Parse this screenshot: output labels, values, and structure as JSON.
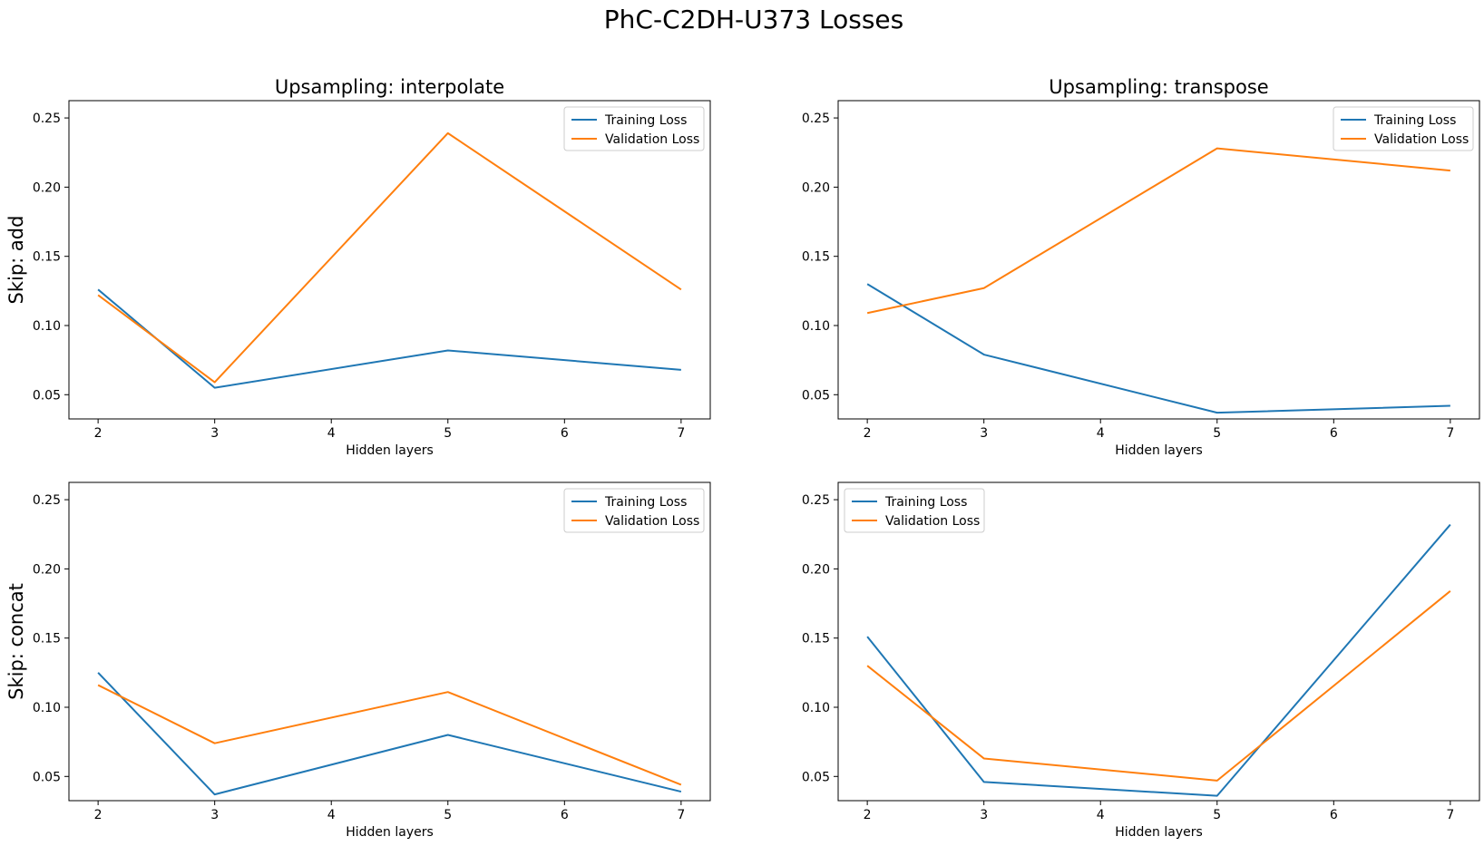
{
  "title": "PhC-C2DH-U373 Losses",
  "chart_data": [
    {
      "type": "line",
      "title": "Upsampling: interpolate",
      "row_label": "Skip: add",
      "xlabel": "Hidden layers",
      "ylabel": "Skip: add",
      "x": [
        2,
        3,
        5,
        7
      ],
      "xticks": [
        "2",
        "3",
        "4",
        "5",
        "6",
        "7"
      ],
      "yticks": [
        "0.05",
        "0.10",
        "0.15",
        "0.20",
        "0.25"
      ],
      "xlim": [
        1.75,
        7.25
      ],
      "ylim": [
        0.0325,
        0.2625
      ],
      "grid": false,
      "legend": "upper right",
      "series": [
        {
          "name": "Training Loss",
          "color": "#1f77b4",
          "values": [
            0.126,
            0.055,
            0.082,
            0.068
          ]
        },
        {
          "name": "Validation Loss",
          "color": "#ff7f0e",
          "values": [
            0.122,
            0.059,
            0.239,
            0.126
          ]
        }
      ]
    },
    {
      "type": "line",
      "title": "Upsampling: transpose",
      "xlabel": "Hidden layers",
      "ylabel": "",
      "x": [
        2,
        3,
        5,
        7
      ],
      "xticks": [
        "2",
        "3",
        "4",
        "5",
        "6",
        "7"
      ],
      "yticks": [
        "0.05",
        "0.10",
        "0.15",
        "0.20",
        "0.25"
      ],
      "xlim": [
        1.75,
        7.25
      ],
      "ylim": [
        0.0325,
        0.2625
      ],
      "grid": false,
      "legend": "upper right",
      "series": [
        {
          "name": "Training Loss",
          "color": "#1f77b4",
          "values": [
            0.13,
            0.079,
            0.037,
            0.042
          ]
        },
        {
          "name": "Validation Loss",
          "color": "#ff7f0e",
          "values": [
            0.109,
            0.127,
            0.228,
            0.212
          ]
        }
      ]
    },
    {
      "type": "line",
      "title": "",
      "row_label": "Skip: concat",
      "xlabel": "Hidden layers",
      "ylabel": "Skip: concat",
      "x": [
        2,
        3,
        5,
        7
      ],
      "xticks": [
        "2",
        "3",
        "4",
        "5",
        "6",
        "7"
      ],
      "yticks": [
        "0.05",
        "0.10",
        "0.15",
        "0.20",
        "0.25"
      ],
      "xlim": [
        1.75,
        7.25
      ],
      "ylim": [
        0.0325,
        0.2625
      ],
      "grid": false,
      "legend": "upper right",
      "series": [
        {
          "name": "Training Loss",
          "color": "#1f77b4",
          "values": [
            0.125,
            0.037,
            0.08,
            0.039
          ]
        },
        {
          "name": "Validation Loss",
          "color": "#ff7f0e",
          "values": [
            0.116,
            0.074,
            0.111,
            0.044
          ]
        }
      ]
    },
    {
      "type": "line",
      "title": "",
      "xlabel": "Hidden layers",
      "ylabel": "",
      "x": [
        2,
        3,
        5,
        7
      ],
      "xticks": [
        "2",
        "3",
        "4",
        "5",
        "6",
        "7"
      ],
      "yticks": [
        "0.05",
        "0.10",
        "0.15",
        "0.20",
        "0.25"
      ],
      "xlim": [
        1.75,
        7.25
      ],
      "ylim": [
        0.0325,
        0.2625
      ],
      "grid": false,
      "legend": "upper left",
      "series": [
        {
          "name": "Training Loss",
          "color": "#1f77b4",
          "values": [
            0.151,
            0.046,
            0.036,
            0.232
          ]
        },
        {
          "name": "Validation Loss",
          "color": "#ff7f0e",
          "values": [
            0.13,
            0.063,
            0.047,
            0.184
          ]
        }
      ]
    }
  ]
}
